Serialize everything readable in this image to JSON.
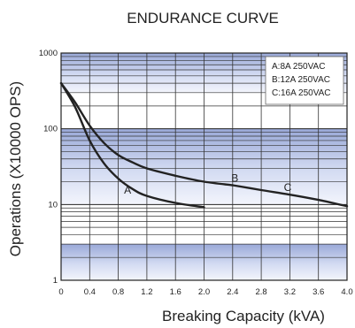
{
  "chart_data": {
    "type": "line",
    "title": "ENDURANCE CURVE",
    "xlabel": "Breaking Capacity (kVA)",
    "ylabel": "Operations (X10000 OPS)",
    "xlim": [
      0,
      4.0
    ],
    "ylim": [
      1,
      1000
    ],
    "yscale": "log",
    "x_ticks": [
      "0",
      "0.4",
      "0.8",
      "1.2",
      "1.6",
      "2.0",
      "2.4",
      "2.8",
      "3.2",
      "3.6",
      "4.0"
    ],
    "y_ticks": [
      "1",
      "10",
      "100",
      "1000"
    ],
    "grid": true,
    "legend_position": "top-right",
    "legend": [
      "A:8A 250VAC",
      "B:12A 250VAC",
      "C:16A 250VAC"
    ],
    "series": [
      {
        "name": "A",
        "x": [
          0,
          0.2,
          0.4,
          0.6,
          0.8,
          1.0,
          1.2,
          1.6,
          2.0
        ],
        "y": [
          400,
          190,
          70,
          35,
          22,
          16,
          13,
          10.5,
          9.2
        ]
      },
      {
        "name": "B",
        "x": [
          0,
          0.2,
          0.4,
          0.6,
          0.8,
          1.0,
          1.2,
          1.6,
          2.0,
          2.4
        ],
        "y": [
          400,
          220,
          110,
          65,
          45,
          36,
          30,
          24,
          20,
          18
        ]
      },
      {
        "name": "C",
        "x": [
          2.4,
          2.8,
          3.2,
          3.6,
          4.0
        ],
        "y": [
          18,
          15.5,
          13.5,
          11.5,
          9.5
        ]
      }
    ],
    "curve_labels": [
      {
        "text": "A",
        "x": 0.93,
        "y": 14
      },
      {
        "text": "B",
        "x": 2.43,
        "y": 20
      },
      {
        "text": "C",
        "x": 3.17,
        "y": 15
      }
    ]
  }
}
